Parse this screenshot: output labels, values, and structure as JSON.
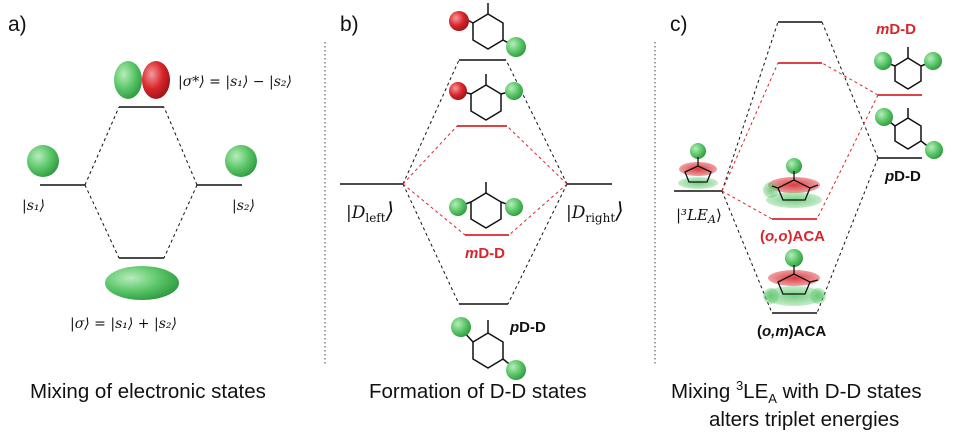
{
  "colors": {
    "green": "#5cc76a",
    "green_dark": "#2f9a3f",
    "red": "#d9262b",
    "black": "#111111"
  },
  "panels": {
    "a": {
      "label": "a)",
      "s1": "|s₁⟩",
      "s2": "|s₂⟩",
      "sigma_star": "|σ*⟩ = |s₁⟩ − |s₂⟩",
      "sigma": "|σ⟩ = |s₁⟩ + |s₂⟩",
      "caption": "Mixing of electronic states"
    },
    "b": {
      "label": "b)",
      "d_left": "|D",
      "d_left_sub": "left",
      "d_right": "|D",
      "d_right_sub": "right",
      "mdd_prefix": "m",
      "mdd_rest": "D-D",
      "pdd_prefix": "p",
      "pdd_rest": "D-D",
      "caption": "Formation of D-D states"
    },
    "c": {
      "label": "c)",
      "le": "|³LE",
      "le_sub": "A",
      "mdd_prefix": "m",
      "mdd_rest": "D-D",
      "pdd_prefix": "p",
      "pdd_rest": "D-D",
      "ooaca_prefix": "(",
      "ooaca_i1": "o,o",
      "ooaca_rest": ")ACA",
      "omaca_prefix": "(",
      "omaca_i1": "o,m",
      "omaca_rest": ")ACA",
      "caption_line1_pre": "Mixing ",
      "caption_line1_sup": "3",
      "caption_line1_mid": "LE",
      "caption_line1_sub": "A",
      "caption_line1_post": " with D-D states",
      "caption_line2": "alters triplet energies"
    }
  }
}
